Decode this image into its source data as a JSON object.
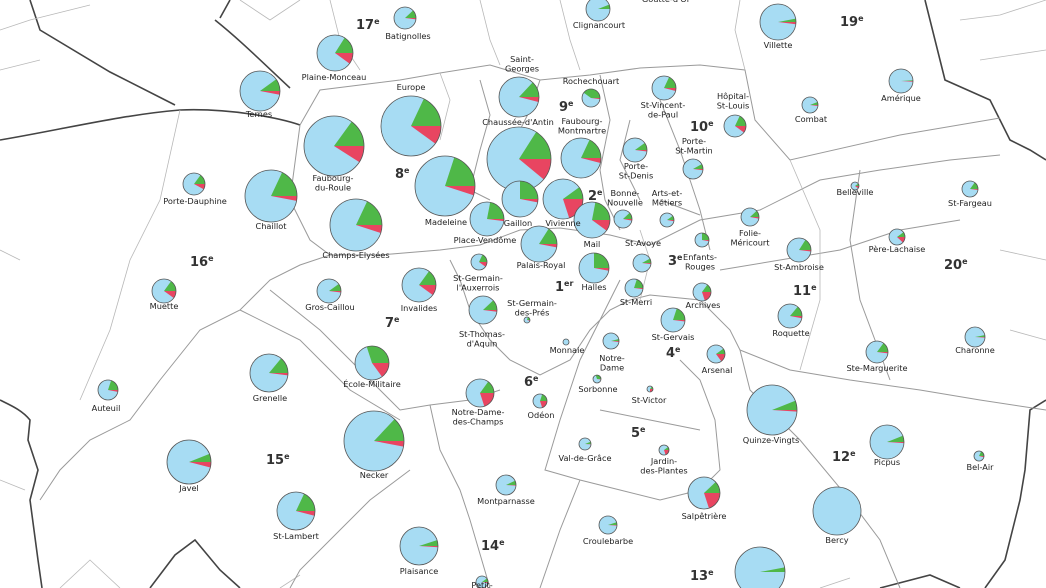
{
  "colors": {
    "light_blue": "#a7dcf3",
    "green": "#4fb848",
    "red": "#e84561",
    "outline": "#555555"
  },
  "arrondissements": [
    {
      "id": "a17",
      "num": "17",
      "sup": "e"
    },
    {
      "id": "a19",
      "num": "19",
      "sup": "e"
    },
    {
      "id": "a8",
      "num": "8",
      "sup": "e"
    },
    {
      "id": "a9",
      "num": "9",
      "sup": "e"
    },
    {
      "id": "a10",
      "num": "10",
      "sup": "e"
    },
    {
      "id": "a2",
      "num": "2",
      "sup": "e"
    },
    {
      "id": "a16",
      "num": "16",
      "sup": "e"
    },
    {
      "id": "a20",
      "num": "20",
      "sup": "e"
    },
    {
      "id": "a3",
      "num": "3",
      "sup": "e"
    },
    {
      "id": "a1",
      "num": "1",
      "sup": "er"
    },
    {
      "id": "a11",
      "num": "11",
      "sup": "e"
    },
    {
      "id": "a7",
      "num": "7",
      "sup": "e"
    },
    {
      "id": "a4",
      "num": "4",
      "sup": "e"
    },
    {
      "id": "a6",
      "num": "6",
      "sup": "e"
    },
    {
      "id": "a5",
      "num": "5",
      "sup": "e"
    },
    {
      "id": "a15",
      "num": "15",
      "sup": "e"
    },
    {
      "id": "a12",
      "num": "12",
      "sup": "e"
    },
    {
      "id": "a14",
      "num": "14",
      "sup": "e"
    },
    {
      "id": "a13",
      "num": "13",
      "sup": "e"
    }
  ],
  "quartiers": [
    {
      "id": "batignolles",
      "name": [
        "Batignolles"
      ],
      "green": 0.12,
      "red": 0.02
    },
    {
      "id": "clignancourt",
      "name": [
        "Clignancourt"
      ],
      "green": 0.06,
      "red": 0.0
    },
    {
      "id": "goutte-d-or",
      "name": [
        "Goutte-d'Or"
      ],
      "green": 0.0,
      "red": 0.0
    },
    {
      "id": "villette",
      "name": [
        "Villette"
      ],
      "green": 0.03,
      "red": 0.02
    },
    {
      "id": "plaine-monceau",
      "name": [
        "Plaine-Monceau"
      ],
      "green": 0.16,
      "red": 0.1
    },
    {
      "id": "ternes",
      "name": [
        "Ternes"
      ],
      "green": 0.1,
      "red": 0.03
    },
    {
      "id": "europe",
      "name": [
        "Europe"
      ],
      "green": 0.18,
      "red": 0.1
    },
    {
      "id": "saint-georges",
      "name": [
        "Saint-",
        "Georges"
      ],
      "green": 0.13,
      "red": 0.04
    },
    {
      "id": "rochechouart",
      "name": [
        "Rochechouart"
      ],
      "green": 0.4,
      "red": 0.02
    },
    {
      "id": "chaussee-d-antin",
      "name": [
        "Chaussée-d'Antin"
      ],
      "green": 0.16,
      "red": 0.11
    },
    {
      "id": "st-vincent-de-paul",
      "name": [
        "St-Vincent-",
        "de-Paul"
      ],
      "green": 0.18,
      "red": 0.04
    },
    {
      "id": "hopital-st-louis",
      "name": [
        "Hôpital-",
        "St-Louis"
      ],
      "green": 0.18,
      "red": 0.1
    },
    {
      "id": "amerique",
      "name": [
        "Amérique"
      ],
      "green": 0.01,
      "red": 0.01
    },
    {
      "id": "combat",
      "name": [
        "Combat"
      ],
      "green": 0.06,
      "red": 0.02
    },
    {
      "id": "faubourg-du-roule",
      "name": [
        "Faubourg-",
        "du-Roule"
      ],
      "green": 0.15,
      "red": 0.09
    },
    {
      "id": "faubourg-montmartre",
      "name": [
        "Faubourg-",
        "Montmartre"
      ],
      "green": 0.18,
      "red": 0.04
    },
    {
      "id": "porte-st-martin",
      "name": [
        "Porte-",
        "St-Martin"
      ],
      "green": 0.08,
      "red": 0.02
    },
    {
      "id": "porte-st-denis",
      "name": [
        "Porte-",
        "St-Denis"
      ],
      "green": 0.1,
      "red": 0.02
    },
    {
      "id": "porte-dauphine",
      "name": [
        "Porte-Dauphine"
      ],
      "green": 0.15,
      "red": 0.08
    },
    {
      "id": "chaillot",
      "name": [
        "Chaillot"
      ],
      "green": 0.18,
      "red": 0.03
    },
    {
      "id": "madeleine",
      "name": [
        "Madeleine"
      ],
      "green": 0.2,
      "red": 0.05
    },
    {
      "id": "gaillon",
      "name": [
        "Gaillon"
      ],
      "green": 0.25,
      "red": 0.03
    },
    {
      "id": "vivienne",
      "name": [
        "Vivienne"
      ],
      "green": 0.1,
      "red": 0.2
    },
    {
      "id": "bonne-nouvelle",
      "name": [
        "Bonne-",
        "Nouvelle"
      ],
      "green": 0.12,
      "red": 0.03
    },
    {
      "id": "arts-et-metiers",
      "name": [
        "Arts-et-",
        "Métiers"
      ],
      "green": 0.1,
      "red": 0.03
    },
    {
      "id": "belleville",
      "name": [
        "Belleville"
      ],
      "green": 0.1,
      "red": 0.1
    },
    {
      "id": "st-fargeau",
      "name": [
        "St-Fargeau"
      ],
      "green": 0.15,
      "red": 0.02
    },
    {
      "id": "folie-mericourt",
      "name": [
        "Folie-",
        "Méricourt"
      ],
      "green": 0.12,
      "red": 0.03
    },
    {
      "id": "champs-elysees",
      "name": [
        "Champs-Elysées"
      ],
      "green": 0.18,
      "red": 0.05
    },
    {
      "id": "place-vendome",
      "name": [
        "Place-Vendôme"
      ],
      "green": 0.22,
      "red": 0.02
    },
    {
      "id": "mail",
      "name": [
        "Mail"
      ],
      "green": 0.22,
      "red": 0.1
    },
    {
      "id": "palais-royal",
      "name": [
        "Palais-Royal"
      ],
      "green": 0.16,
      "red": 0.03
    },
    {
      "id": "st-avoye",
      "name": [
        "St-Avoye"
      ],
      "green": 0.08,
      "red": 0.02
    },
    {
      "id": "enfants-rouges",
      "name": [
        "Enfants-",
        "Rouges"
      ],
      "green": 0.25,
      "red": 0.03
    },
    {
      "id": "st-ambroise",
      "name": [
        "St-Ambroise"
      ],
      "green": 0.16,
      "red": 0.02
    },
    {
      "id": "pere-lachaise",
      "name": [
        "Père-Lachaise"
      ],
      "green": 0.1,
      "red": 0.12
    },
    {
      "id": "muette",
      "name": [
        "Muette"
      ],
      "green": 0.15,
      "red": 0.1
    },
    {
      "id": "st-germain-l-auxerrois",
      "name": [
        "St-Germain-",
        "l'Auxerrois"
      ],
      "green": 0.18,
      "red": 0.1
    },
    {
      "id": "halles",
      "name": [
        "Halles"
      ],
      "green": 0.25,
      "red": 0.03
    },
    {
      "id": "invalides",
      "name": [
        "Invalides"
      ],
      "green": 0.15,
      "red": 0.1
    },
    {
      "id": "gros-caillou",
      "name": [
        "Gros-Caillou"
      ],
      "green": 0.1,
      "red": 0.02
    },
    {
      "id": "st-germain-des-pres",
      "name": [
        "St-Germain-",
        "des-Prés"
      ],
      "green": 0.2,
      "red": 0.05
    },
    {
      "id": "st-merri",
      "name": [
        "St-Merri"
      ],
      "green": 0.2,
      "red": 0.02
    },
    {
      "id": "archives",
      "name": [
        "Archives"
      ],
      "green": 0.15,
      "red": 0.2
    },
    {
      "id": "roquette",
      "name": [
        "Roquette"
      ],
      "green": 0.14,
      "red": 0.03
    },
    {
      "id": "st-thomas-d-aquin",
      "name": [
        "St-Thomas-",
        "d'Aquin"
      ],
      "green": 0.12,
      "red": 0.02
    },
    {
      "id": "monnaie",
      "name": [
        "Monnaie"
      ],
      "green": 0.0,
      "red": 0.0
    },
    {
      "id": "st-gervais",
      "name": [
        "St-Gervais"
      ],
      "green": 0.2,
      "red": 0.02
    },
    {
      "id": "notre-dame",
      "name": [
        "Notre-",
        "Dame"
      ],
      "green": 0.04,
      "red": 0.02
    },
    {
      "id": "ste-marguerite",
      "name": [
        "Ste-Marguerite"
      ],
      "green": 0.15,
      "red": 0.02
    },
    {
      "id": "charonne",
      "name": [
        "Charonne"
      ],
      "green": 0.03,
      "red": 0.01
    },
    {
      "id": "ecole-militaire",
      "name": [
        "École-Militaire"
      ],
      "green": 0.3,
      "red": 0.15
    },
    {
      "id": "grenelle",
      "name": [
        "Grenelle"
      ],
      "green": 0.14,
      "red": 0.02
    },
    {
      "id": "auteuil",
      "name": [
        "Auteuil"
      ],
      "green": 0.2,
      "red": 0.03
    },
    {
      "id": "arsenal",
      "name": [
        "Arsenal"
      ],
      "green": 0.1,
      "red": 0.15
    },
    {
      "id": "sorbonne",
      "name": [
        "Sorbonne"
      ],
      "green": 0.3,
      "red": 0.02
    },
    {
      "id": "st-victor",
      "name": [
        "St-Victor"
      ],
      "green": 0.15,
      "red": 0.25
    },
    {
      "id": "notre-dame-des-champs",
      "name": [
        "Notre-Dame-",
        "des-Champs"
      ],
      "green": 0.15,
      "red": 0.2
    },
    {
      "id": "odeon",
      "name": [
        "Odéon"
      ],
      "green": 0.2,
      "red": 0.2
    },
    {
      "id": "quinze-vingts",
      "name": [
        "Quinze-Vingts"
      ],
      "green": 0.06,
      "red": 0.01
    },
    {
      "id": "val-de-grace",
      "name": [
        "Val-de-Grâce"
      ],
      "green": 0.06,
      "red": 0.01
    },
    {
      "id": "jardin-des-plantes",
      "name": [
        "Jardin-",
        "des-Plantes"
      ],
      "green": 0.1,
      "red": 0.2
    },
    {
      "id": "picpus",
      "name": [
        "Picpus"
      ],
      "green": 0.06,
      "red": 0.01
    },
    {
      "id": "bel-air",
      "name": [
        "Bel-Air"
      ],
      "green": 0.18,
      "red": 0.04
    },
    {
      "id": "javel",
      "name": [
        "Javel"
      ],
      "green": 0.06,
      "red": 0.04
    },
    {
      "id": "necker",
      "name": [
        "Necker"
      ],
      "green": 0.13,
      "red": 0.03
    },
    {
      "id": "montparnasse",
      "name": [
        "Montparnasse"
      ],
      "green": 0.07,
      "red": 0.01
    },
    {
      "id": "salpetriere",
      "name": [
        "Salpêtrière"
      ],
      "green": 0.12,
      "red": 0.2
    },
    {
      "id": "st-lambert",
      "name": [
        "St-Lambert"
      ],
      "green": 0.18,
      "red": 0.04
    },
    {
      "id": "croulebarbe",
      "name": [
        "Croulebarbe"
      ],
      "green": 0.05,
      "red": 0.01
    },
    {
      "id": "bercy",
      "name": [
        "Bercy"
      ],
      "green": 0.0,
      "red": 0.0
    },
    {
      "id": "plaisance",
      "name": [
        "Plaisance"
      ],
      "green": 0.05,
      "red": 0.01
    },
    {
      "id": "petit-montrouge",
      "name": [
        "Petit-"
      ],
      "green": 0.1,
      "red": 0.03
    },
    {
      "id": "gare",
      "name": [],
      "green": 0.03,
      "red": 0.0
    }
  ]
}
